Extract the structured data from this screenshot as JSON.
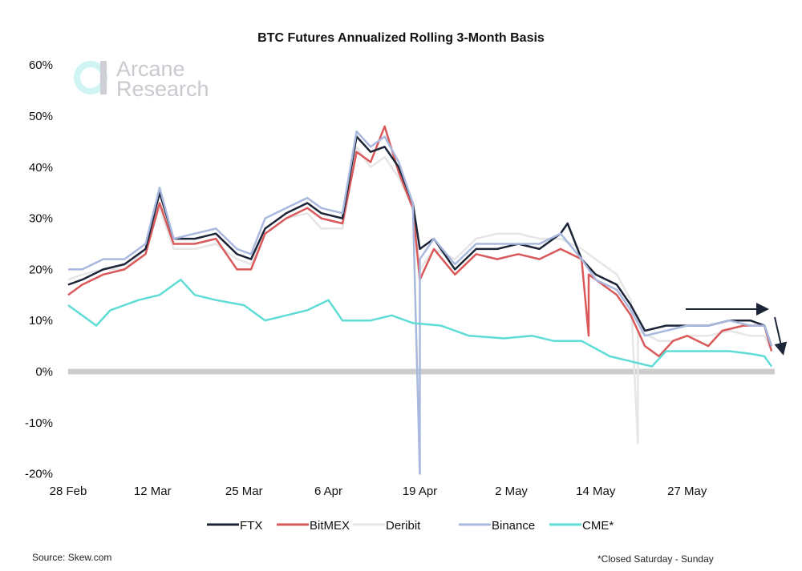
{
  "chart_data": {
    "type": "line",
    "title": "BTC Futures Annualized Rolling 3-Month Basis",
    "ylabel": "",
    "xlabel": "",
    "ylim": [
      -20,
      60
    ],
    "yticks": [
      "60%",
      "50%",
      "40%",
      "30%",
      "20%",
      "10%",
      "0%",
      "-10%",
      "-20%"
    ],
    "ytick_values": [
      60,
      50,
      40,
      30,
      20,
      10,
      0,
      -10,
      -20
    ],
    "xticks": [
      "28 Feb",
      "12 Mar",
      "25 Mar",
      "6 Apr",
      "19 Apr",
      "2 May",
      "14 May",
      "27 May"
    ],
    "grid": false,
    "zero_line_color": "#cccccc",
    "legend_placement": "bottom",
    "series": [
      {
        "name": "FTX",
        "color": "#1c2538",
        "points": [
          [
            "28 Feb",
            17
          ],
          [
            "2 Mar",
            18
          ],
          [
            "5 Mar",
            20
          ],
          [
            "8 Mar",
            21
          ],
          [
            "11 Mar",
            24
          ],
          [
            "13 Mar",
            35
          ],
          [
            "15 Mar",
            26
          ],
          [
            "18 Mar",
            26
          ],
          [
            "21 Mar",
            27
          ],
          [
            "24 Mar",
            23
          ],
          [
            "26 Mar",
            22
          ],
          [
            "28 Mar",
            28
          ],
          [
            "31 Mar",
            31
          ],
          [
            "3 Apr",
            33
          ],
          [
            "5 Apr",
            31
          ],
          [
            "8 Apr",
            30
          ],
          [
            "10 Apr",
            46
          ],
          [
            "12 Apr",
            43
          ],
          [
            "14 Apr",
            44
          ],
          [
            "16 Apr",
            40
          ],
          [
            "18 Apr",
            33
          ],
          [
            "19 Apr",
            24
          ],
          [
            "21 Apr",
            26
          ],
          [
            "24 Apr",
            20
          ],
          [
            "27 Apr",
            24
          ],
          [
            "30 Apr",
            24
          ],
          [
            "3 May",
            25
          ],
          [
            "6 May",
            24
          ],
          [
            "9 May",
            27
          ],
          [
            "10 May",
            29
          ],
          [
            "12 May",
            22
          ],
          [
            "14 May",
            19
          ],
          [
            "17 May",
            17
          ],
          [
            "19 May",
            13
          ],
          [
            "21 May",
            8
          ],
          [
            "24 May",
            9
          ],
          [
            "27 May",
            9
          ],
          [
            "30 May",
            9
          ],
          [
            "2 Jun",
            10
          ],
          [
            "5 Jun",
            10
          ],
          [
            "7 Jun",
            9
          ],
          [
            "8 Jun",
            5
          ]
        ]
      },
      {
        "name": "BitMEX",
        "color": "#d9595a",
        "points": [
          [
            "28 Feb",
            15
          ],
          [
            "2 Mar",
            17
          ],
          [
            "5 Mar",
            19
          ],
          [
            "8 Mar",
            20
          ],
          [
            "11 Mar",
            23
          ],
          [
            "13 Mar",
            33
          ],
          [
            "15 Mar",
            25
          ],
          [
            "18 Mar",
            25
          ],
          [
            "21 Mar",
            26
          ],
          [
            "24 Mar",
            20
          ],
          [
            "26 Mar",
            20
          ],
          [
            "28 Mar",
            27
          ],
          [
            "31 Mar",
            30
          ],
          [
            "3 Apr",
            32
          ],
          [
            "5 Apr",
            30
          ],
          [
            "8 Apr",
            29
          ],
          [
            "10 Apr",
            43
          ],
          [
            "12 Apr",
            41
          ],
          [
            "14 Apr",
            48
          ],
          [
            "16 Apr",
            39
          ],
          [
            "18 Apr",
            32
          ],
          [
            "19 Apr",
            18
          ],
          [
            "21 Apr",
            24
          ],
          [
            "24 Apr",
            19
          ],
          [
            "27 Apr",
            23
          ],
          [
            "30 Apr",
            22
          ],
          [
            "3 May",
            23
          ],
          [
            "6 May",
            22
          ],
          [
            "9 May",
            24
          ],
          [
            "12 May",
            22
          ],
          [
            "13 May",
            7
          ],
          [
            "13 May",
            19
          ],
          [
            "17 May",
            15
          ],
          [
            "19 May",
            11
          ],
          [
            "21 May",
            5
          ],
          [
            "23 May",
            3
          ],
          [
            "25 May",
            6
          ],
          [
            "27 May",
            7
          ],
          [
            "30 May",
            5
          ],
          [
            "1 Jun",
            8
          ],
          [
            "4 Jun",
            9
          ],
          [
            "7 Jun",
            9
          ],
          [
            "8 Jun",
            4
          ]
        ]
      },
      {
        "name": "Deribit",
        "color": "#e6e6e6",
        "points": [
          [
            "28 Feb",
            18
          ],
          [
            "2 Mar",
            19
          ],
          [
            "5 Mar",
            20
          ],
          [
            "8 Mar",
            20
          ],
          [
            "11 Mar",
            24
          ],
          [
            "13 Mar",
            32
          ],
          [
            "15 Mar",
            24
          ],
          [
            "18 Mar",
            24
          ],
          [
            "21 Mar",
            25
          ],
          [
            "24 Mar",
            22
          ],
          [
            "26 Mar",
            21
          ],
          [
            "28 Mar",
            27
          ],
          [
            "31 Mar",
            30
          ],
          [
            "3 Apr",
            31
          ],
          [
            "5 Apr",
            28
          ],
          [
            "8 Apr",
            28
          ],
          [
            "10 Apr",
            44
          ],
          [
            "12 Apr",
            40
          ],
          [
            "14 Apr",
            42
          ],
          [
            "16 Apr",
            38
          ],
          [
            "18 Apr",
            32
          ],
          [
            "19 Apr",
            20
          ],
          [
            "21 Apr",
            24
          ],
          [
            "24 Apr",
            22
          ],
          [
            "27 Apr",
            26
          ],
          [
            "30 Apr",
            27
          ],
          [
            "3 May",
            27
          ],
          [
            "6 May",
            26
          ],
          [
            "9 May",
            26
          ],
          [
            "12 May",
            24
          ],
          [
            "14 May",
            22
          ],
          [
            "17 May",
            19
          ],
          [
            "19 May",
            14
          ],
          [
            "20 May",
            -14
          ],
          [
            "20 May",
            8
          ],
          [
            "23 May",
            6
          ],
          [
            "25 May",
            6
          ],
          [
            "27 May",
            7
          ],
          [
            "30 May",
            7
          ],
          [
            "2 Jun",
            8
          ],
          [
            "5 Jun",
            7
          ],
          [
            "7 Jun",
            7
          ],
          [
            "8 Jun",
            4
          ]
        ]
      },
      {
        "name": "Binance",
        "color": "#a9b8de",
        "points": [
          [
            "28 Feb",
            20
          ],
          [
            "2 Mar",
            20
          ],
          [
            "5 Mar",
            22
          ],
          [
            "8 Mar",
            22
          ],
          [
            "11 Mar",
            25
          ],
          [
            "13 Mar",
            36
          ],
          [
            "15 Mar",
            26
          ],
          [
            "18 Mar",
            27
          ],
          [
            "21 Mar",
            28
          ],
          [
            "24 Mar",
            24
          ],
          [
            "26 Mar",
            23
          ],
          [
            "28 Mar",
            30
          ],
          [
            "31 Mar",
            32
          ],
          [
            "3 Apr",
            34
          ],
          [
            "5 Apr",
            32
          ],
          [
            "8 Apr",
            31
          ],
          [
            "10 Apr",
            47
          ],
          [
            "12 Apr",
            44
          ],
          [
            "14 Apr",
            46
          ],
          [
            "16 Apr",
            41
          ],
          [
            "18 Apr",
            33
          ],
          [
            "19 Apr",
            -20
          ],
          [
            "19 Apr",
            22
          ],
          [
            "21 Apr",
            26
          ],
          [
            "24 Apr",
            21
          ],
          [
            "27 Apr",
            25
          ],
          [
            "30 Apr",
            25
          ],
          [
            "3 May",
            25
          ],
          [
            "6 May",
            25
          ],
          [
            "9 May",
            27
          ],
          [
            "12 May",
            22
          ],
          [
            "14 May",
            18
          ],
          [
            "17 May",
            16
          ],
          [
            "19 May",
            12
          ],
          [
            "21 May",
            7
          ],
          [
            "24 May",
            8
          ],
          [
            "27 May",
            9
          ],
          [
            "30 May",
            9
          ],
          [
            "2 Jun",
            10
          ],
          [
            "5 Jun",
            9
          ],
          [
            "7 Jun",
            9
          ],
          [
            "8 Jun",
            5
          ]
        ]
      },
      {
        "name": "CME*",
        "color": "#5fdcd6",
        "points": [
          [
            "28 Feb",
            13
          ],
          [
            "2 Mar",
            11
          ],
          [
            "4 Mar",
            9
          ],
          [
            "6 Mar",
            12
          ],
          [
            "10 Mar",
            14
          ],
          [
            "13 Mar",
            15
          ],
          [
            "16 Mar",
            18
          ],
          [
            "18 Mar",
            15
          ],
          [
            "21 Mar",
            14
          ],
          [
            "25 Mar",
            13
          ],
          [
            "28 Mar",
            10
          ],
          [
            "31 Mar",
            11
          ],
          [
            "3 Apr",
            12
          ],
          [
            "6 Apr",
            14
          ],
          [
            "8 Apr",
            10
          ],
          [
            "12 Apr",
            10
          ],
          [
            "15 Apr",
            11
          ],
          [
            "18 Apr",
            9.5
          ],
          [
            "22 Apr",
            9
          ],
          [
            "26 Apr",
            7
          ],
          [
            "1 May",
            6.5
          ],
          [
            "5 May",
            7
          ],
          [
            "8 May",
            6
          ],
          [
            "12 May",
            6
          ],
          [
            "16 May",
            3
          ],
          [
            "19 May",
            2
          ],
          [
            "22 May",
            1
          ],
          [
            "24 May",
            4
          ],
          [
            "27 May",
            4
          ],
          [
            "30 May",
            4
          ],
          [
            "2 Jun",
            4
          ],
          [
            "5 Jun",
            3.5
          ],
          [
            "7 Jun",
            3
          ],
          [
            "8 Jun",
            1
          ]
        ]
      }
    ]
  },
  "logo": {
    "line1": "Arcane",
    "line2": "Research"
  },
  "source": "Source: Skew.com",
  "footnote": "*Closed Saturday - Sunday"
}
